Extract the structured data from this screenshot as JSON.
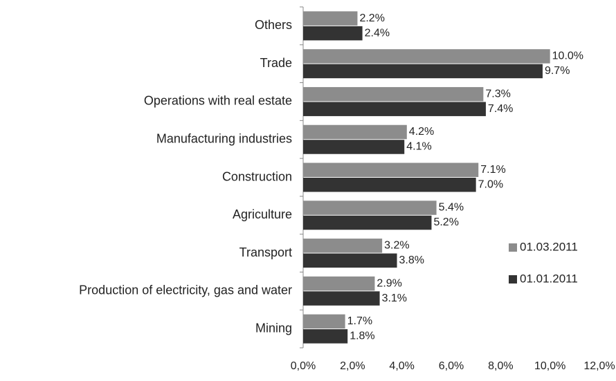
{
  "chart_data": {
    "type": "bar",
    "orientation": "horizontal",
    "categories": [
      "Others",
      "Trade",
      "Operations with real estate",
      "Manufacturing industries",
      "Construction",
      "Agriculture",
      "Transport",
      "Production of electricity, gas and water",
      "Mining"
    ],
    "series": [
      {
        "name": "01.03.2011",
        "color": "#8c8c8c",
        "values": [
          2.2,
          10.0,
          7.3,
          4.2,
          7.1,
          5.4,
          3.2,
          2.9,
          1.7
        ],
        "value_labels": [
          "2.2%",
          "10.0%",
          "7.3%",
          "4.2%",
          "7.1%",
          "5.4%",
          "3.2%",
          "2.9%",
          "1.7%"
        ]
      },
      {
        "name": "01.01.2011",
        "color": "#333333",
        "values": [
          2.4,
          9.7,
          7.4,
          4.1,
          7.0,
          5.2,
          3.8,
          3.1,
          1.8
        ],
        "value_labels": [
          "2.4%",
          "9.7%",
          "7.4%",
          "4.1%",
          "7.0%",
          "5.2%",
          "3.8%",
          "3.1%",
          "1.8%"
        ]
      }
    ],
    "xlim": [
      0,
      12
    ],
    "xticks": [
      {
        "value": 0,
        "label": "0,0%"
      },
      {
        "value": 2,
        "label": "2,0%"
      },
      {
        "value": 4,
        "label": "4,0%"
      },
      {
        "value": 6,
        "label": "6,0%"
      },
      {
        "value": 8,
        "label": "8,0%"
      },
      {
        "value": 10,
        "label": "10,0%"
      },
      {
        "value": 12,
        "label": "12,0%"
      }
    ],
    "legend": "right"
  }
}
